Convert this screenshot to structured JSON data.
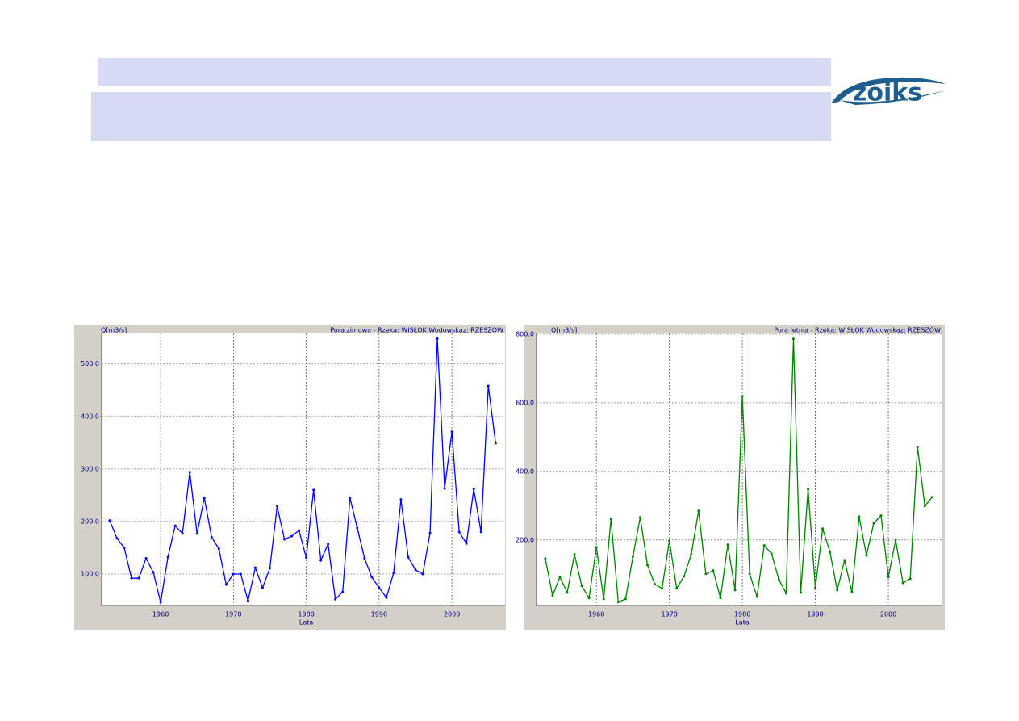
{
  "logo": "zoiks",
  "chart_data": [
    {
      "type": "line",
      "title": "Pora zimowa - Rzeka: WISŁOK Wodowskaz: RZESZÓW",
      "y_label": "Q[m3/s]",
      "x_label": "Lata",
      "x": [
        1953,
        1954,
        1955,
        1956,
        1957,
        1958,
        1959,
        1960,
        1961,
        1962,
        1963,
        1964,
        1965,
        1966,
        1967,
        1968,
        1969,
        1970,
        1971,
        1972,
        1973,
        1974,
        1975,
        1976,
        1977,
        1978,
        1979,
        1980,
        1981,
        1982,
        1983,
        1984,
        1985,
        1986,
        1987,
        1988,
        1989,
        1990,
        1991,
        1992,
        1993,
        1994,
        1995,
        1996,
        1997,
        1998,
        1999,
        2000,
        2001,
        2002,
        2003,
        2004,
        2005,
        2006
      ],
      "series": [
        {
          "color": "#0000ff",
          "values": [
            202,
            168,
            150,
            92,
            92,
            130,
            103,
            46,
            132,
            192,
            177,
            294,
            177,
            245,
            170,
            148,
            80,
            100,
            100,
            49,
            112,
            74,
            111,
            229,
            166,
            172,
            183,
            131,
            260,
            126,
            157,
            52,
            66,
            245,
            188,
            130,
            94,
            74,
            55,
            102,
            242,
            132,
            108,
            100,
            178,
            548,
            263,
            371,
            180,
            158,
            262,
            180,
            458,
            349
          ]
        }
      ],
      "xlim": [
        1951.9,
        2007.3
      ],
      "ylim": [
        40,
        558
      ],
      "xticks": [
        1960,
        1970,
        1980,
        1990,
        2000
      ],
      "yticks": [
        {
          "value": 100,
          "label": "100.0"
        },
        {
          "value": 200,
          "label": "200.0"
        },
        {
          "value": 300,
          "label": "300.0"
        },
        {
          "value": 400,
          "label": "400.0"
        },
        {
          "value": 500,
          "label": "500.0"
        }
      ],
      "grid": true
    },
    {
      "type": "line",
      "title": "Pora letnia - Rzeka: WISŁOK Wodowskaz: RZESZÓW",
      "y_label": "Q[m3/s]",
      "x_label": "Lata",
      "x": [
        1953,
        1954,
        1955,
        1956,
        1957,
        1958,
        1959,
        1960,
        1961,
        1962,
        1963,
        1964,
        1965,
        1966,
        1967,
        1968,
        1969,
        1970,
        1971,
        1972,
        1973,
        1974,
        1975,
        1976,
        1977,
        1978,
        1979,
        1980,
        1981,
        1982,
        1983,
        1984,
        1985,
        1986,
        1987,
        1988,
        1989,
        1990,
        1991,
        1992,
        1993,
        1994,
        1995,
        1996,
        1997,
        1998,
        1999,
        2000,
        2001,
        2002,
        2003,
        2004,
        2005,
        2006
      ],
      "series": [
        {
          "color": "#008000",
          "values": [
            146,
            38,
            92,
            47,
            158,
            66,
            31,
            179,
            28,
            261,
            19,
            28,
            151,
            266,
            127,
            71,
            59,
            198,
            59,
            94,
            158,
            285,
            101,
            111,
            31,
            186,
            54,
            619,
            101,
            35,
            184,
            160,
            85,
            45,
            786,
            47,
            348,
            61,
            233,
            165,
            54,
            141,
            49,
            268,
            155,
            249,
            271,
            92,
            200,
            75,
            87,
            471,
            299,
            325
          ]
        }
      ],
      "xlim": [
        1951.8,
        2007.4
      ],
      "ylim": [
        9,
        802
      ],
      "xticks": [
        1960,
        1970,
        1980,
        1990,
        2000
      ],
      "yticks": [
        {
          "value": 200,
          "label": "200.0"
        },
        {
          "value": 400,
          "label": "400.0"
        },
        {
          "value": 600,
          "label": "600.0"
        },
        {
          "value": 800,
          "label": "800.0"
        }
      ],
      "grid": true
    }
  ]
}
